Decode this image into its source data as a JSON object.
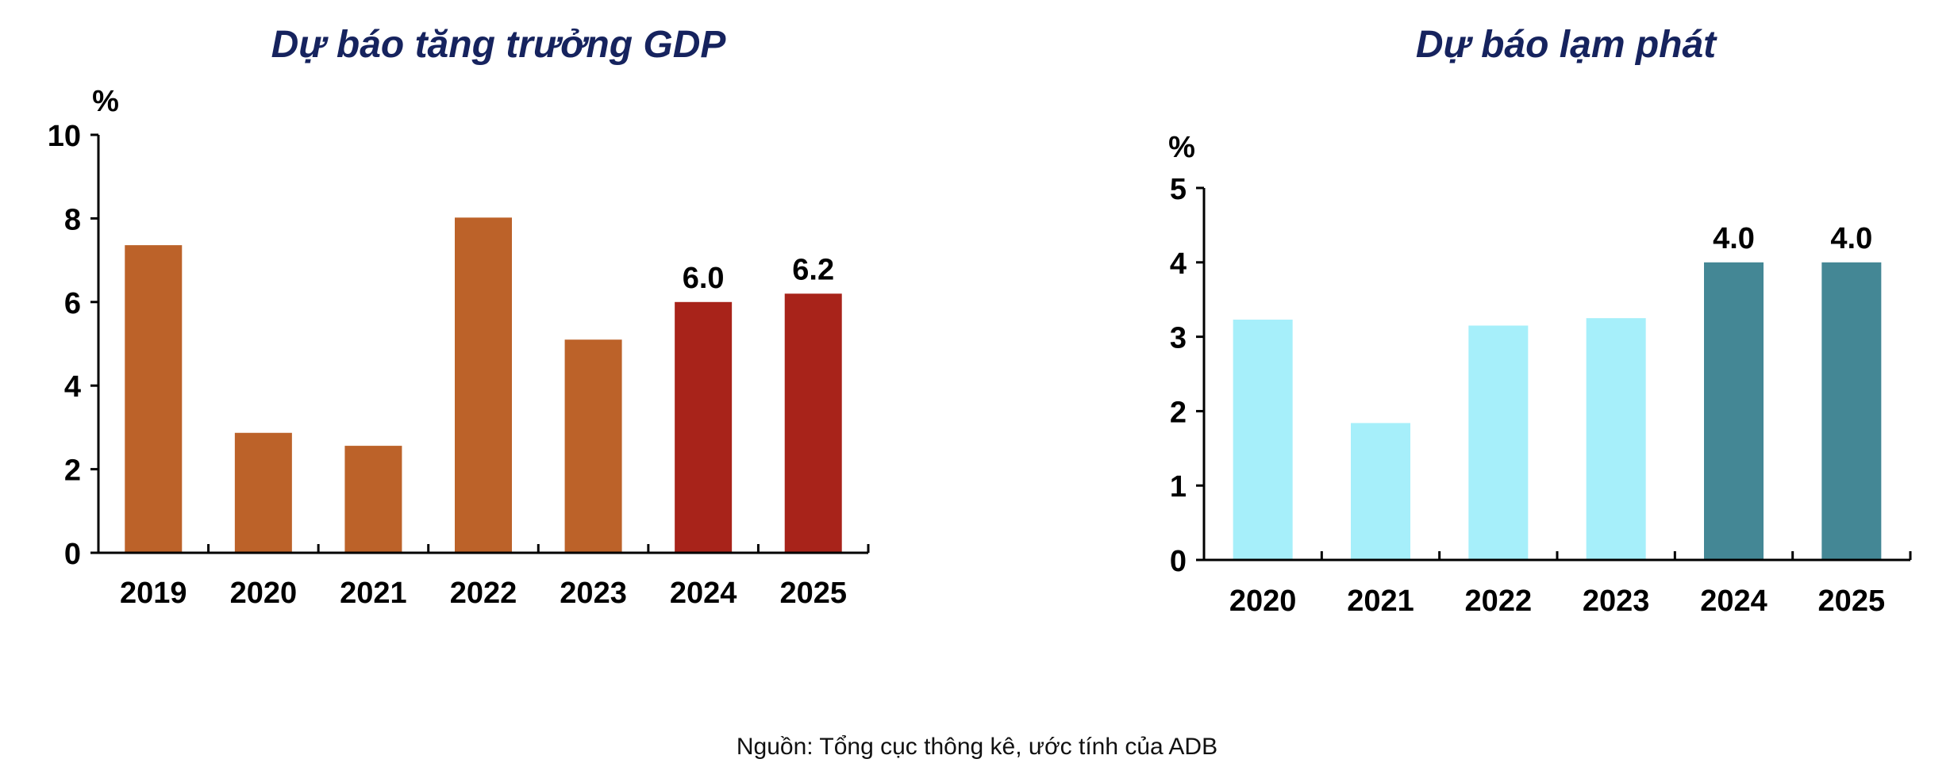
{
  "chart_data": [
    {
      "type": "bar",
      "title": "Dự báo tăng trưởng GDP",
      "ylabel": "%",
      "ylim": [
        0,
        10
      ],
      "yticks": [
        0,
        2,
        4,
        6,
        8,
        10
      ],
      "categories": [
        "2019",
        "2020",
        "2021",
        "2022",
        "2023",
        "2024",
        "2025"
      ],
      "values": [
        7.36,
        2.87,
        2.56,
        8.02,
        5.1,
        6.0,
        6.2
      ],
      "data_labels": [
        "",
        "",
        "",
        "",
        "",
        "6.0",
        "6.2"
      ],
      "colors": [
        "#BC6229",
        "#BC6229",
        "#BC6229",
        "#BC6229",
        "#BC6229",
        "#A8231A",
        "#A8231A"
      ],
      "grid": false
    },
    {
      "type": "bar",
      "title": "Dự báo lạm phát",
      "ylabel": "%",
      "ylim": [
        0,
        5
      ],
      "yticks": [
        0,
        1,
        2,
        3,
        4,
        5
      ],
      "categories": [
        "2020",
        "2021",
        "2022",
        "2023",
        "2024",
        "2025"
      ],
      "values": [
        3.23,
        1.84,
        3.15,
        3.25,
        4.0,
        4.0
      ],
      "data_labels": [
        "",
        "",
        "",
        "",
        "4.0",
        "4.0"
      ],
      "colors": [
        "#A6EFFA",
        "#A6EFFA",
        "#A6EFFA",
        "#A6EFFA",
        "#448795",
        "#448795"
      ],
      "grid": false
    }
  ],
  "title_color": "#16235E",
  "source": "Nguồn: Tổng cục thông kê, ước tính của ADB"
}
